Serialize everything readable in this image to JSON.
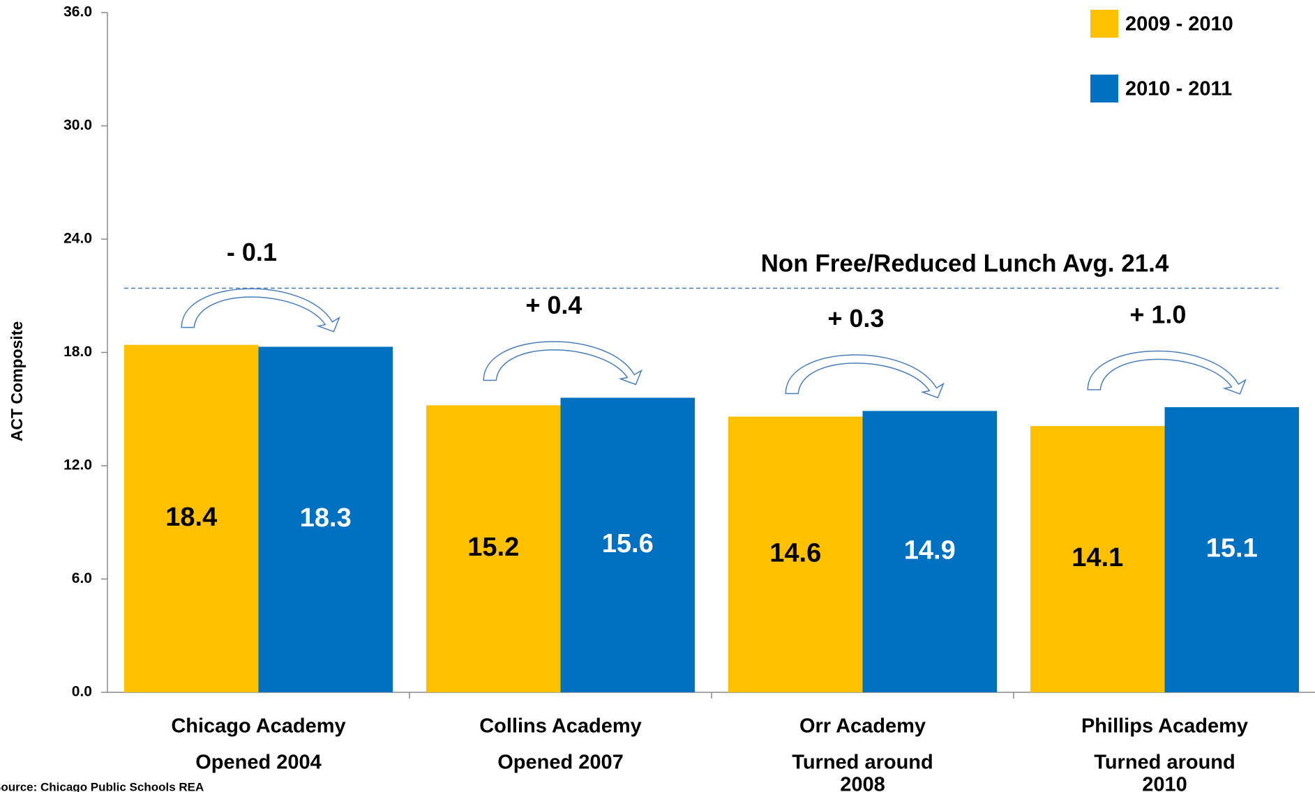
{
  "chart_data": {
    "type": "bar",
    "y_axis_label": "ACT Composite",
    "categories": [
      [
        "Chicago Academy",
        "Opened 2004"
      ],
      [
        "Collins Academy",
        "Opened 2007"
      ],
      [
        "Orr Academy",
        "Turned around",
        "2008"
      ],
      [
        "Phillips Academy",
        "Turned around",
        "2010"
      ]
    ],
    "series": [
      {
        "name": "2009 - 2010",
        "color": "#ffc000",
        "label_color": "#000000",
        "values": [
          18.4,
          15.2,
          14.6,
          14.1
        ]
      },
      {
        "name": "2010 - 2011",
        "color": "#0070c0",
        "label_color": "#ffffff",
        "values": [
          18.3,
          15.6,
          14.9,
          15.1
        ]
      }
    ],
    "annotations": [
      "- 0.1",
      "+ 0.4",
      "+ 0.3",
      "+ 1.0"
    ],
    "reference_line": {
      "value": 21.4,
      "label": "Non Free/Reduced Lunch Avg. 21.4",
      "color": "#4a7ebb"
    },
    "ylim": [
      0,
      36
    ],
    "yticks": [
      {
        "value": 0,
        "label": "0.0"
      },
      {
        "value": 6,
        "label": "6.0"
      },
      {
        "value": 12,
        "label": "12.0"
      },
      {
        "value": 18,
        "label": "18.0"
      },
      {
        "value": 24,
        "label": "24.0"
      },
      {
        "value": 30,
        "label": "30.0"
      },
      {
        "value": 36,
        "label": "36.0"
      }
    ],
    "legend": "top-right",
    "source": "Source: Chicago Public Schools REA"
  }
}
